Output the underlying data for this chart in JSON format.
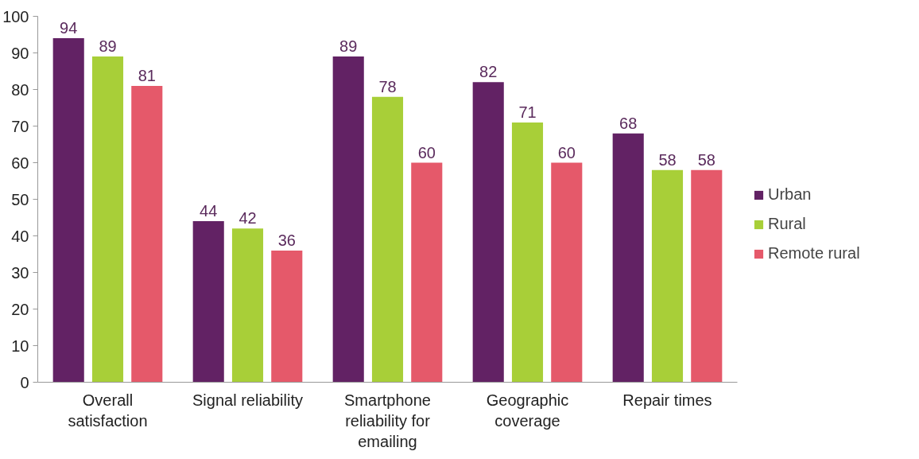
{
  "chart_data": {
    "type": "bar",
    "categories": [
      "Overall\nsatisfaction",
      "Signal reliability",
      "Smartphone\nreliability for\nemailing",
      "Geographic\ncoverage",
      "Repair times"
    ],
    "series": [
      {
        "name": "Urban",
        "color": "#622264",
        "values": [
          94,
          44,
          89,
          82,
          68
        ]
      },
      {
        "name": "Rural",
        "color": "#a8cf38",
        "values": [
          89,
          42,
          78,
          71,
          58
        ]
      },
      {
        "name": "Remote rural",
        "color": "#e5596a",
        "values": [
          81,
          36,
          60,
          60,
          58
        ]
      }
    ],
    "ylim": [
      0,
      100
    ],
    "yticks": [
      0,
      10,
      20,
      30,
      40,
      50,
      60,
      70,
      80,
      90,
      100
    ],
    "grid": false,
    "legend": "right",
    "data_labels": true
  }
}
